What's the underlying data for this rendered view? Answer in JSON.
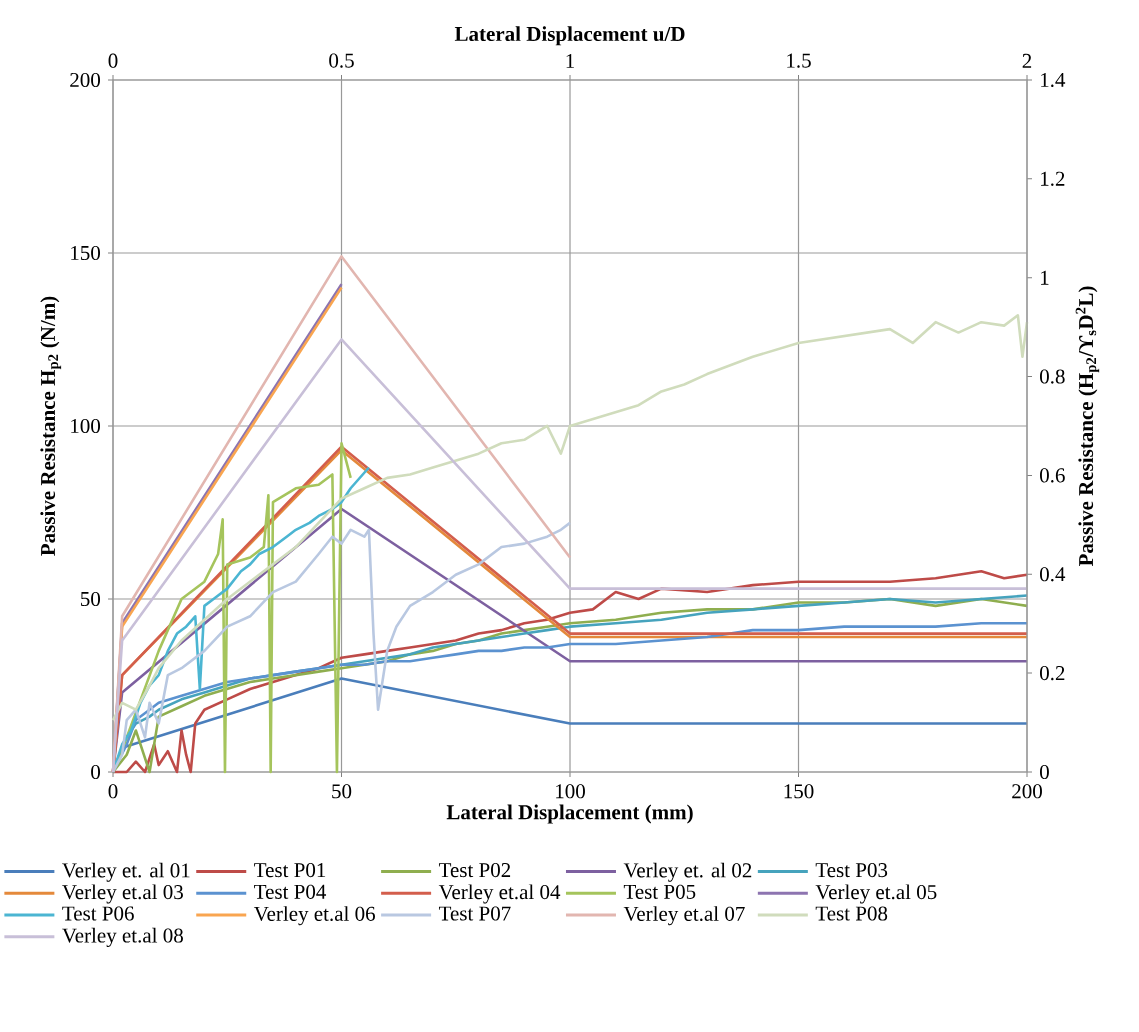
{
  "chart_data": {
    "type": "line",
    "xlabel": "Lateral Displacement (mm)",
    "x2label": "Lateral Displacement u/D",
    "ylabel": "Passive Resistance H$_{p2}$ (N/m)",
    "y2label": "Passive Resistance (H$_{p2}$/ϒ$_{s}$D$^{2}$L)",
    "xlim": [
      0,
      200
    ],
    "xticks": [
      0,
      50,
      100,
      150,
      200
    ],
    "ylim": [
      0,
      200
    ],
    "yticks": [
      0,
      50,
      100,
      150,
      200
    ],
    "x2lim": [
      0,
      2
    ],
    "x2ticks": [
      0,
      0.5,
      1,
      1.5,
      2
    ],
    "y2lim": [
      0,
      1.4
    ],
    "y2ticks": [
      0,
      0.2,
      0.4,
      0.6,
      0.8,
      1,
      1.2,
      1.4
    ],
    "grid": true,
    "legend": "bottom",
    "series": [
      {
        "name": "Verley et. al 01",
        "color": "#4a7ebb",
        "x": [
          0,
          2,
          50,
          100,
          200
        ],
        "values": [
          0,
          7,
          27,
          14,
          14
        ]
      },
      {
        "name": "Test P01",
        "color": "#be4b48",
        "x": [
          0,
          3,
          5,
          7,
          9,
          10,
          12,
          14,
          15,
          16,
          17,
          18,
          20,
          25,
          30,
          35,
          40,
          45,
          50,
          55,
          60,
          65,
          70,
          75,
          80,
          85,
          90,
          95,
          100,
          105,
          110,
          115,
          120,
          130,
          140,
          150,
          160,
          170,
          180,
          190,
          195,
          200
        ],
        "values": [
          0,
          0,
          3,
          0,
          8,
          2,
          6,
          0,
          12,
          5,
          0,
          14,
          18,
          21,
          24,
          26,
          28,
          30,
          33,
          34,
          35,
          36,
          37,
          38,
          40,
          41,
          43,
          44,
          46,
          47,
          52,
          50,
          53,
          52,
          54,
          55,
          55,
          55,
          56,
          58,
          56,
          57
        ]
      },
      {
        "name": "Test P02",
        "color": "#8fae4f",
        "x": [
          0,
          3,
          5,
          8,
          10,
          15,
          20,
          25,
          30,
          35,
          40,
          45,
          50,
          55,
          60,
          65,
          70,
          75,
          80,
          85,
          90,
          95,
          100,
          110,
          120,
          130,
          140,
          150,
          160,
          170,
          180,
          190,
          200
        ],
        "values": [
          0,
          5,
          12,
          0,
          16,
          19,
          22,
          24,
          26,
          27,
          28,
          29,
          30,
          31,
          32,
          34,
          35,
          37,
          38,
          40,
          41,
          42,
          43,
          44,
          46,
          47,
          47,
          49,
          49,
          50,
          48,
          50,
          48
        ]
      },
      {
        "name": "Verley et. al 02",
        "color": "#7d60a0",
        "x": [
          0,
          2,
          50,
          100,
          200
        ],
        "values": [
          0,
          23,
          76,
          32,
          32
        ]
      },
      {
        "name": "Test P03",
        "color": "#46a3bd",
        "x": [
          0,
          3,
          5,
          8,
          10,
          15,
          20,
          25,
          30,
          35,
          40,
          45,
          50,
          55,
          60,
          65,
          70,
          75,
          80,
          85,
          90,
          95,
          100,
          110,
          120,
          130,
          140,
          150,
          160,
          170,
          180,
          190,
          200
        ],
        "values": [
          0,
          10,
          14,
          16,
          18,
          21,
          23,
          25,
          27,
          28,
          29,
          30,
          31,
          32,
          33,
          34,
          36,
          37,
          38,
          39,
          40,
          41,
          42,
          43,
          44,
          46,
          47,
          48,
          49,
          50,
          49,
          50,
          51
        ]
      },
      {
        "name": "Verley et.al 03",
        "color": "#e4893b",
        "x": [
          0,
          2,
          50,
          100,
          200
        ],
        "values": [
          0,
          28,
          93,
          39,
          39
        ]
      },
      {
        "name": "Test P04",
        "color": "#5b92d0",
        "x": [
          0,
          3,
          5,
          8,
          10,
          15,
          20,
          25,
          30,
          35,
          40,
          45,
          50,
          55,
          60,
          65,
          70,
          75,
          80,
          85,
          90,
          95,
          100,
          110,
          120,
          130,
          140,
          150,
          160,
          170,
          180,
          190,
          200
        ],
        "values": [
          0,
          8,
          15,
          18,
          20,
          22,
          24,
          26,
          27,
          28,
          29,
          30,
          31,
          31,
          32,
          32,
          33,
          34,
          35,
          35,
          36,
          36,
          37,
          37,
          38,
          39,
          41,
          41,
          42,
          42,
          42,
          43,
          43
        ]
      },
      {
        "name": "Verley et.al 04",
        "color": "#d35e4c",
        "x": [
          0,
          2,
          50,
          100,
          200
        ],
        "values": [
          0,
          28,
          94,
          40,
          40
        ]
      },
      {
        "name": "Test P05",
        "color": "#a5c45c",
        "x": [
          0,
          3,
          10,
          15,
          20,
          23,
          24,
          24.5,
          25,
          30,
          33,
          34,
          34.5,
          35,
          40,
          45,
          48,
          49,
          50,
          52
        ],
        "values": [
          0,
          10,
          35,
          50,
          55,
          63,
          73,
          0,
          60,
          62,
          65,
          80,
          0,
          78,
          82,
          83,
          86,
          0,
          95,
          85
        ]
      },
      {
        "name": "Verley et.al 05",
        "color": "#8d74b0",
        "x": [
          0,
          2,
          50
        ],
        "values": [
          0,
          43,
          141
        ]
      },
      {
        "name": "Test P06",
        "color": "#4bb5d2",
        "x": [
          0,
          2,
          4,
          6,
          8,
          10,
          12,
          14,
          16,
          18,
          19,
          20,
          22,
          25,
          28,
          30,
          32,
          35,
          38,
          40,
          43,
          45,
          48,
          50,
          52,
          54,
          56
        ],
        "values": [
          0,
          8,
          12,
          20,
          25,
          28,
          35,
          40,
          42,
          45,
          24,
          48,
          50,
          53,
          58,
          60,
          63,
          65,
          68,
          70,
          72,
          74,
          76,
          78,
          82,
          85,
          88
        ]
      },
      {
        "name": "Verley et.al 06",
        "color": "#f9a550",
        "x": [
          0,
          2,
          50
        ],
        "values": [
          0,
          42,
          140
        ]
      },
      {
        "name": "Test P07",
        "color": "#b9c8e1",
        "x": [
          0,
          2,
          3,
          5,
          7,
          8,
          10,
          12,
          15,
          20,
          25,
          30,
          35,
          40,
          45,
          48,
          50,
          52,
          55,
          56,
          57,
          58,
          60,
          62,
          65,
          70,
          75,
          80,
          85,
          90,
          95,
          98,
          100
        ],
        "values": [
          0,
          5,
          15,
          18,
          10,
          20,
          14,
          28,
          30,
          35,
          42,
          45,
          52,
          55,
          63,
          68,
          66,
          70,
          68,
          70,
          40,
          18,
          35,
          42,
          48,
          52,
          57,
          60,
          65,
          66,
          68,
          70,
          72
        ]
      },
      {
        "name": "Verley et.al 07",
        "color": "#e2b6b0",
        "x": [
          0,
          2,
          50,
          100
        ],
        "values": [
          0,
          45,
          149,
          62
        ]
      },
      {
        "name": "Test P08",
        "color": "#d0dcbc",
        "x": [
          0,
          2,
          5,
          8,
          10,
          15,
          20,
          25,
          30,
          35,
          40,
          45,
          50,
          55,
          60,
          65,
          70,
          75,
          80,
          85,
          90,
          95,
          98,
          100,
          105,
          110,
          115,
          120,
          125,
          130,
          140,
          150,
          160,
          170,
          175,
          180,
          185,
          190,
          195,
          198,
          199,
          200
        ],
        "values": [
          15,
          20,
          18,
          25,
          30,
          38,
          44,
          50,
          55,
          60,
          65,
          72,
          79,
          82,
          85,
          86,
          88,
          90,
          92,
          95,
          96,
          100,
          92,
          100,
          102,
          104,
          106,
          110,
          112,
          115,
          120,
          124,
          126,
          128,
          124,
          130,
          127,
          130,
          129,
          132,
          120,
          130
        ]
      },
      {
        "name": "Verley et.al 08",
        "color": "#c8bfd8",
        "x": [
          0,
          2,
          50,
          100,
          200
        ],
        "values": [
          0,
          38,
          125,
          53,
          53
        ]
      }
    ]
  }
}
